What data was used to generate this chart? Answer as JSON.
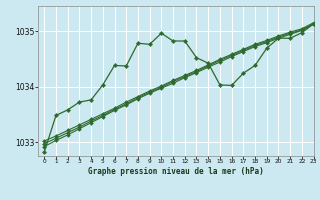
{
  "title": "Graphe pression niveau de la mer (hPa)",
  "background_color": "#cce8f0",
  "grid_color": "#ffffff",
  "line_color": "#2d6a2d",
  "xlim": [
    -0.5,
    23
  ],
  "ylim": [
    1032.75,
    1035.45
  ],
  "yticks": [
    1033,
    1034,
    1035
  ],
  "xticks": [
    0,
    1,
    2,
    3,
    4,
    5,
    6,
    7,
    8,
    9,
    10,
    11,
    12,
    13,
    14,
    15,
    16,
    17,
    18,
    19,
    20,
    21,
    22,
    23
  ],
  "s1": [
    1032.82,
    1033.48,
    1033.58,
    1033.72,
    1033.76,
    1034.03,
    1034.38,
    1034.37,
    1034.78,
    1034.76,
    1034.96,
    1034.82,
    1034.82,
    1034.52,
    1034.42,
    1034.03,
    1034.02,
    1034.24,
    1034.38,
    1034.69,
    1034.87,
    1034.87,
    1034.97,
    1035.13
  ],
  "s2": [
    1032.92,
    1033.03,
    1033.13,
    1033.24,
    1033.35,
    1033.46,
    1033.57,
    1033.67,
    1033.78,
    1033.88,
    1033.97,
    1034.06,
    1034.16,
    1034.25,
    1034.35,
    1034.44,
    1034.54,
    1034.63,
    1034.72,
    1034.79,
    1034.87,
    1034.94,
    1035.01,
    1035.12
  ],
  "s3": [
    1032.97,
    1033.07,
    1033.17,
    1033.27,
    1033.38,
    1033.48,
    1033.59,
    1033.69,
    1033.8,
    1033.9,
    1033.99,
    1034.09,
    1034.18,
    1034.27,
    1034.37,
    1034.47,
    1034.56,
    1034.65,
    1034.74,
    1034.81,
    1034.89,
    1034.96,
    1035.02,
    1035.13
  ],
  "s4": [
    1033.02,
    1033.11,
    1033.21,
    1033.31,
    1033.41,
    1033.51,
    1033.61,
    1033.72,
    1033.82,
    1033.92,
    1034.01,
    1034.11,
    1034.2,
    1034.29,
    1034.39,
    1034.49,
    1034.58,
    1034.67,
    1034.76,
    1034.83,
    1034.91,
    1034.98,
    1035.04,
    1035.15
  ]
}
